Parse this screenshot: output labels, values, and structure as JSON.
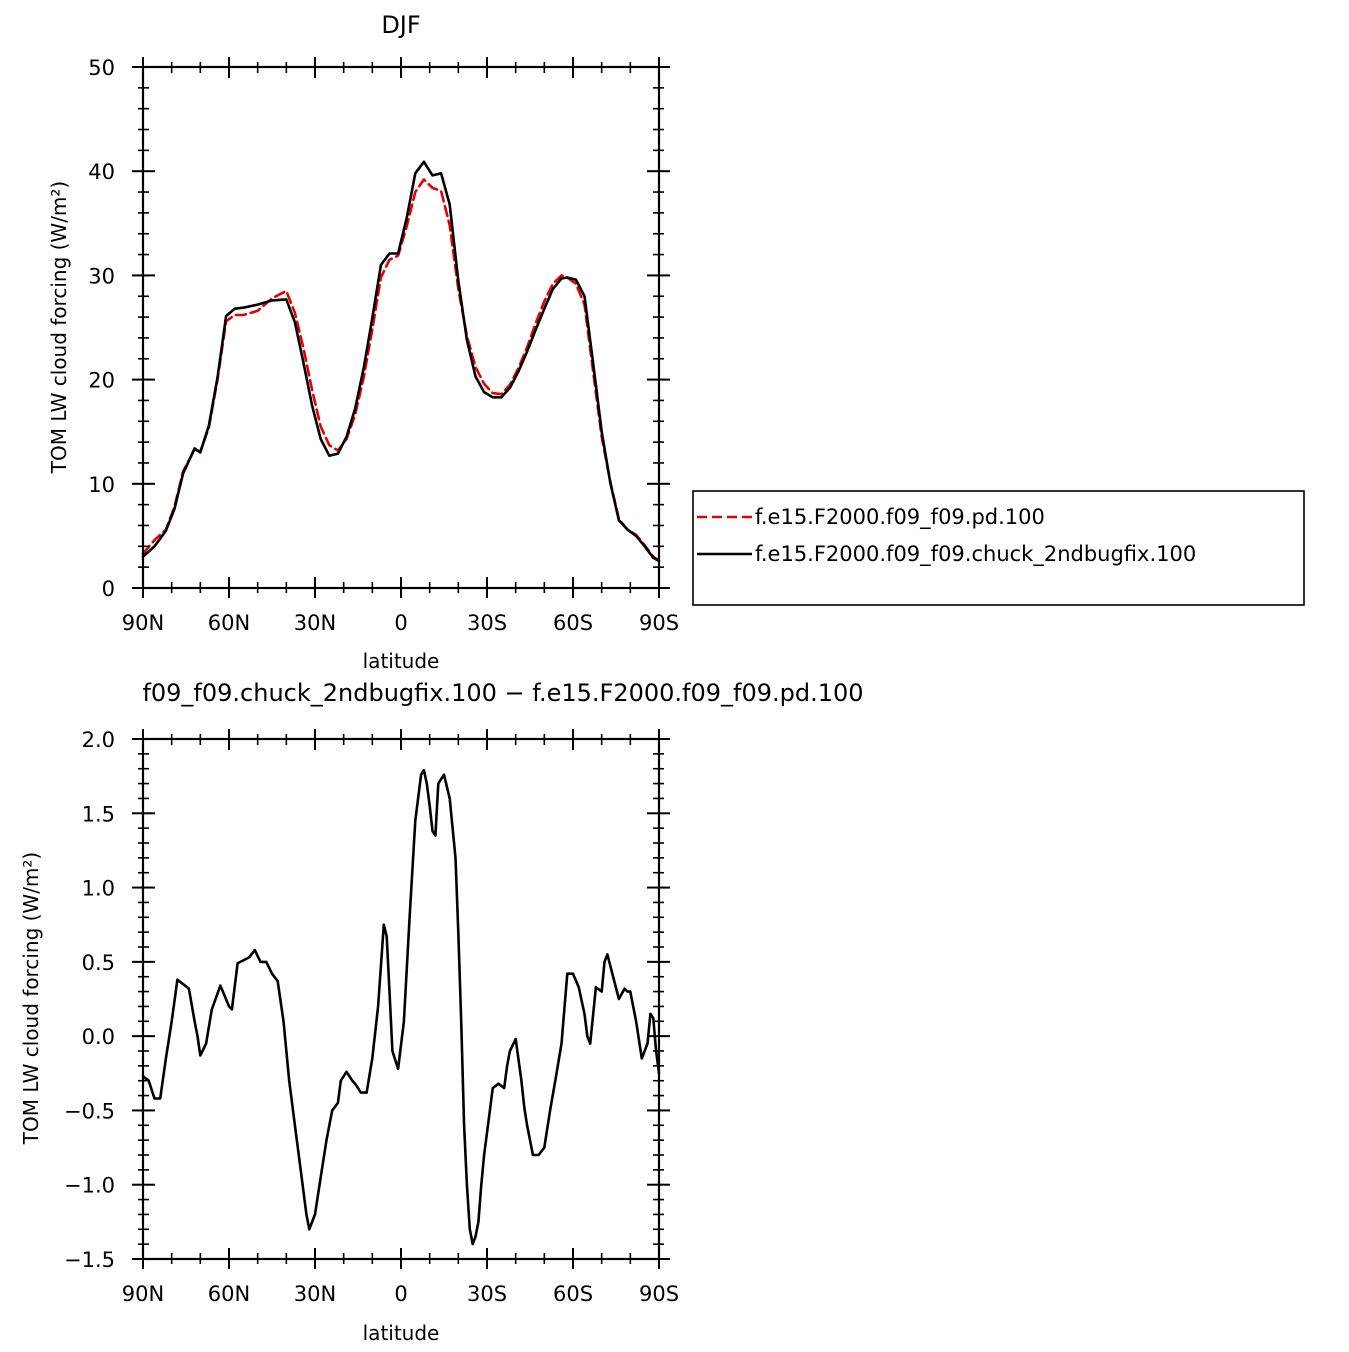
{
  "chart_data": [
    {
      "type": "line",
      "title": "DJF",
      "xlabel": "latitude",
      "ylabel": "TOM LW cloud forcing (W/m²)",
      "xlim": [
        -90,
        90
      ],
      "ylim": [
        0,
        50
      ],
      "x_ticks": [
        -90,
        -60,
        -30,
        0,
        30,
        60,
        90
      ],
      "x_tick_labels": [
        "90N",
        "60N",
        "30N",
        "0",
        "30S",
        "60S",
        "90S"
      ],
      "y_ticks": [
        0,
        10,
        20,
        30,
        40,
        50
      ],
      "y_tick_labels": [
        "0",
        "10",
        "20",
        "30",
        "40",
        "50"
      ],
      "legend_position": "right",
      "series": [
        {
          "name": "f.e15.F2000.f09_f09.pd.100",
          "color": "#e60000",
          "dash": "dashed",
          "x": [
            -90,
            -86,
            -82,
            -79,
            -76,
            -72,
            -70,
            -67,
            -64,
            -61,
            -58,
            -55,
            -50,
            -45,
            -40,
            -37,
            -34,
            -31,
            -28,
            -25,
            -22,
            -19,
            -16,
            -13,
            -10,
            -7,
            -4,
            -1,
            2,
            5,
            8,
            11,
            14,
            17,
            20,
            23,
            26,
            29,
            32,
            35,
            38,
            41,
            44,
            47,
            50,
            53,
            56,
            58,
            61,
            64,
            67,
            70,
            73,
            76,
            79,
            82,
            85,
            88,
            90
          ],
          "y": [
            3.3,
            4.6,
            5.6,
            7.8,
            11.2,
            13.3,
            13.1,
            15.4,
            20,
            25.6,
            26.2,
            26.2,
            26.6,
            27.8,
            28.5,
            26.4,
            23,
            19,
            15.5,
            13.7,
            13.2,
            14.3,
            16.6,
            20.2,
            24.8,
            29.8,
            31.5,
            31.9,
            34.7,
            38,
            39.2,
            38.4,
            38.1,
            34.8,
            28.7,
            24.2,
            21.2,
            19.6,
            18.7,
            18.6,
            19.5,
            21.1,
            23.1,
            25.4,
            27.5,
            29.2,
            30,
            29.8,
            29.2,
            27.2,
            20.8,
            14.5,
            10.2,
            6.6,
            5.6,
            5.1,
            4.1,
            3,
            2.6
          ]
        },
        {
          "name": "f.e15.F2000.f09_f09.chuck_2ndbugfix.100",
          "color": "#000000",
          "dash": "solid",
          "x": [
            -90,
            -86,
            -82,
            -79,
            -76,
            -72,
            -70,
            -67,
            -64,
            -61,
            -58,
            -55,
            -50,
            -45,
            -40,
            -37,
            -34,
            -31,
            -28,
            -25,
            -22,
            -19,
            -16,
            -13,
            -10,
            -7,
            -4,
            -1,
            2,
            5,
            8,
            11,
            14,
            17,
            20,
            23,
            26,
            29,
            32,
            35,
            38,
            41,
            44,
            47,
            50,
            53,
            56,
            58,
            61,
            64,
            67,
            70,
            73,
            76,
            79,
            82,
            85,
            88,
            90
          ],
          "y": [
            3,
            4,
            5.5,
            7.6,
            11,
            13.4,
            13,
            15.6,
            20.2,
            26.1,
            26.8,
            26.9,
            27.2,
            27.6,
            27.7,
            25.5,
            21.6,
            17.5,
            14.3,
            12.7,
            12.9,
            14.5,
            17.2,
            21.1,
            25.9,
            31,
            32.1,
            32.1,
            35.5,
            39.8,
            40.9,
            39.6,
            39.8,
            36.8,
            29.5,
            23.8,
            20.3,
            18.8,
            18.3,
            18.3,
            19.2,
            20.8,
            22.7,
            24.8,
            26.8,
            28.7,
            29.7,
            29.8,
            29.6,
            28,
            21.6,
            15,
            10.1,
            6.5,
            5.6,
            5,
            4,
            2.9,
            2.6
          ]
        }
      ]
    },
    {
      "type": "line",
      "title": "f09_f09.chuck_2ndbugfix.100 − f.e15.F2000.f09_f09.pd.100",
      "xlabel": "latitude",
      "ylabel": "TOM LW cloud forcing (W/m²)",
      "xlim": [
        -90,
        90
      ],
      "ylim": [
        -1.5,
        2.0
      ],
      "x_ticks": [
        -90,
        -60,
        -30,
        0,
        30,
        60,
        90
      ],
      "x_tick_labels": [
        "90N",
        "60N",
        "30N",
        "0",
        "30S",
        "60S",
        "90S"
      ],
      "y_ticks": [
        -1.5,
        -1.0,
        -0.5,
        0.0,
        0.5,
        1.0,
        1.5,
        2.0
      ],
      "y_tick_labels": [
        "−1.5",
        "−1.0",
        "−0.5",
        "0.0",
        "0.5",
        "1.0",
        "1.5",
        "2.0"
      ],
      "series": [
        {
          "color": "#000000",
          "dash": "solid",
          "x": [
            -90,
            -88,
            -86,
            -84,
            -82,
            -80,
            -78,
            -76,
            -74,
            -72,
            -71,
            -70,
            -68,
            -66,
            -63,
            -60,
            -59,
            -57,
            -55,
            -53,
            -51,
            -49,
            -47,
            -45,
            -43,
            -41,
            -39,
            -37,
            -35,
            -33,
            -32,
            -30,
            -28,
            -26,
            -24,
            -22,
            -21,
            -19,
            -17,
            -16,
            -14,
            -12,
            -10,
            -8,
            -6,
            -5,
            -4,
            -3,
            -1,
            1,
            3,
            5,
            7,
            8,
            9,
            10,
            11,
            12,
            13,
            15,
            17,
            18,
            19,
            20,
            21,
            22,
            23,
            24,
            25,
            26,
            27,
            28,
            29,
            30,
            31,
            32,
            34,
            36,
            37,
            38,
            40,
            42,
            43,
            44,
            46,
            48,
            50,
            52,
            54,
            56,
            58,
            60,
            62,
            64,
            65,
            66,
            68,
            70,
            71,
            72,
            74,
            76,
            78,
            79,
            80,
            82,
            84,
            86,
            87,
            88,
            89,
            90
          ],
          "y": [
            -0.27,
            -0.3,
            -0.42,
            -0.42,
            -0.15,
            0.1,
            0.38,
            0.35,
            0.32,
            0.1,
            0,
            -0.13,
            -0.05,
            0.18,
            0.34,
            0.2,
            0.18,
            0.49,
            0.51,
            0.53,
            0.58,
            0.5,
            0.5,
            0.42,
            0.37,
            0.1,
            -0.3,
            -0.6,
            -0.9,
            -1.2,
            -1.3,
            -1.2,
            -0.95,
            -0.7,
            -0.5,
            -0.45,
            -0.3,
            -0.24,
            -0.3,
            -0.32,
            -0.38,
            -0.38,
            -0.15,
            0.2,
            0.75,
            0.67,
            0.3,
            -0.1,
            -0.22,
            0.1,
            0.8,
            1.45,
            1.76,
            1.79,
            1.7,
            1.55,
            1.38,
            1.35,
            1.7,
            1.76,
            1.6,
            1.4,
            1.2,
            0.7,
            0.1,
            -0.6,
            -1,
            -1.3,
            -1.4,
            -1.35,
            -1.25,
            -1,
            -0.8,
            -0.65,
            -0.5,
            -0.35,
            -0.32,
            -0.35,
            -0.2,
            -0.1,
            -0.02,
            -0.3,
            -0.48,
            -0.6,
            -0.8,
            -0.8,
            -0.75,
            -0.5,
            -0.28,
            -0.05,
            0.42,
            0.42,
            0.33,
            0.15,
            0,
            -0.05,
            0.33,
            0.3,
            0.5,
            0.55,
            0.4,
            0.25,
            0.32,
            0.3,
            0.3,
            0.1,
            -0.15,
            -0.05,
            0.15,
            0.12,
            -0.1,
            -0.25
          ]
        }
      ]
    }
  ]
}
